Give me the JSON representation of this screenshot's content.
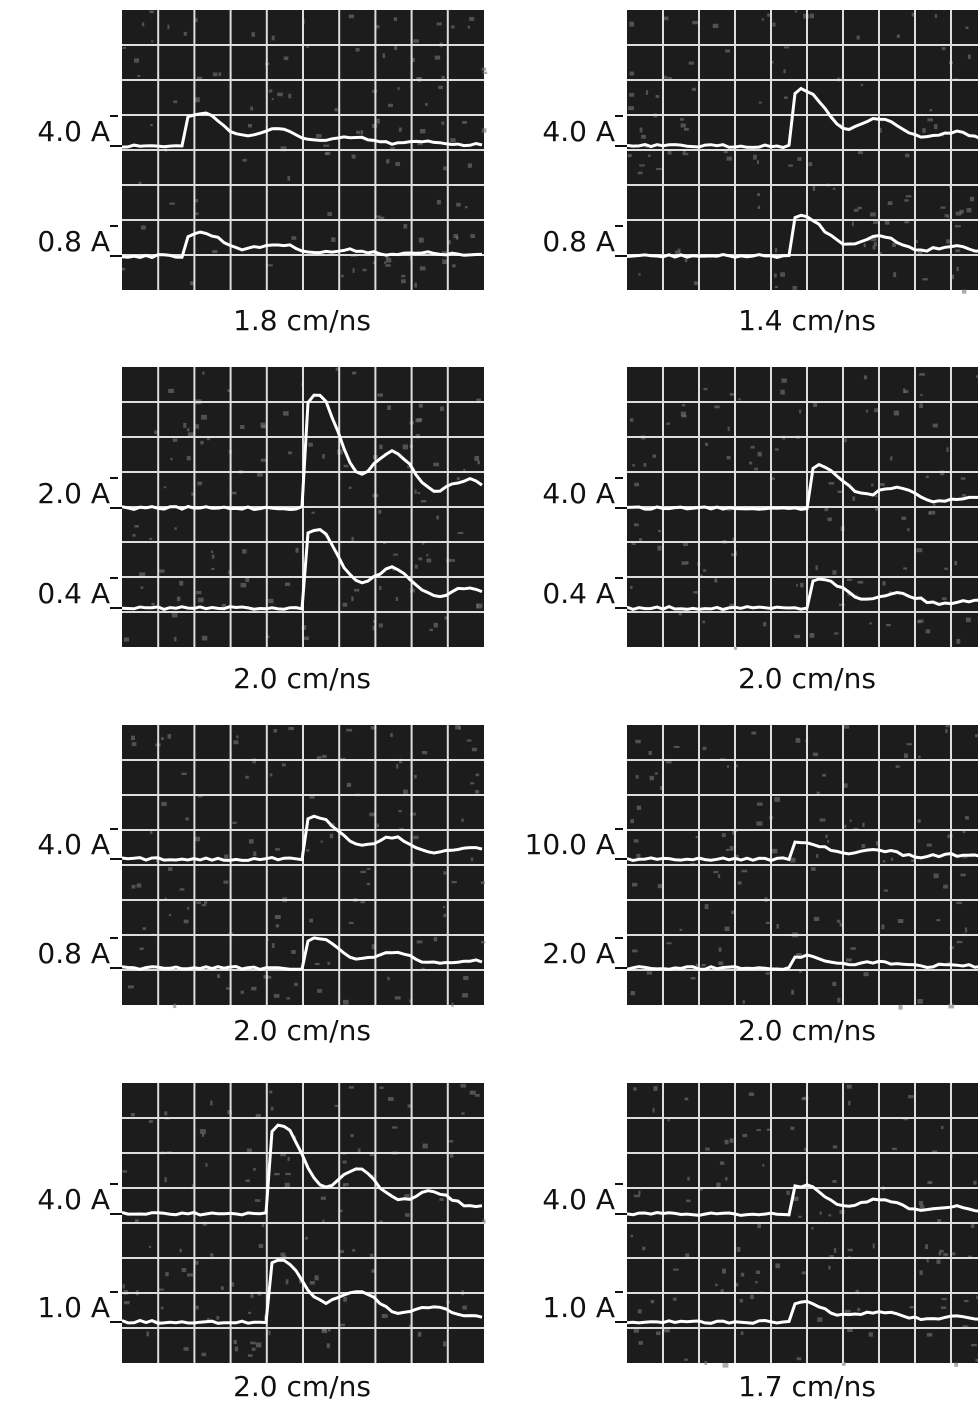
{
  "panels": [
    {
      "upper_label": "4.0 A",
      "lower_label": "0.8 A",
      "caption": "1.8 cm/ns"
    },
    {
      "upper_label": "4.0 A",
      "lower_label": "0.8 A",
      "caption": "1.4 cm/ns"
    },
    {
      "upper_label": "2.0 A",
      "lower_label": "0.4 A",
      "caption": "2.0 cm/ns"
    },
    {
      "upper_label": "4.0 A",
      "lower_label": "0.4 A",
      "caption": "2.0 cm/ns"
    },
    {
      "upper_label": "4.0 A",
      "lower_label": "0.8 A",
      "caption": "2.0 cm/ns"
    },
    {
      "upper_label": "10.0 A",
      "lower_label": "2.0 A",
      "caption": "2.0 cm/ns"
    },
    {
      "upper_label": "4.0 A",
      "lower_label": "1.0 A",
      "caption": "2.0 cm/ns"
    },
    {
      "upper_label": "4.0 A",
      "lower_label": "1.0 A",
      "caption": "1.7 cm/ns"
    }
  ]
}
